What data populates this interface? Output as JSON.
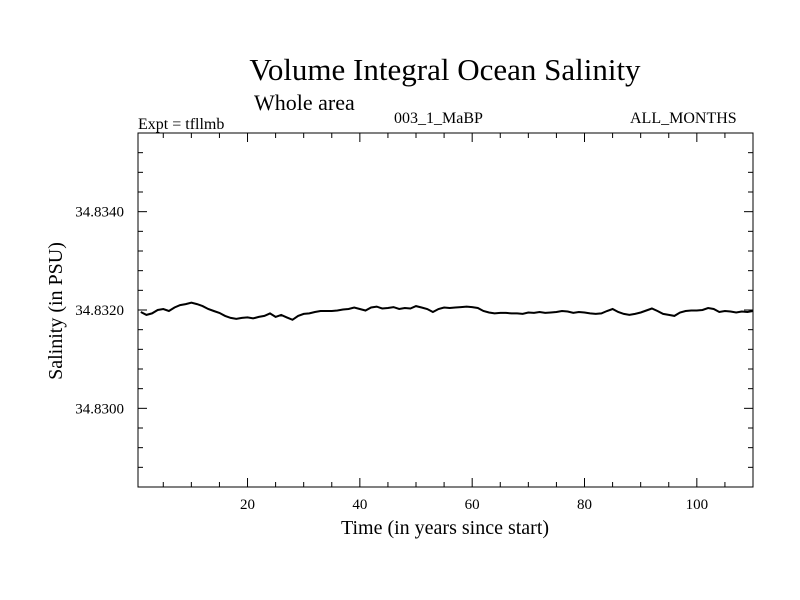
{
  "chart_data": {
    "type": "line",
    "title": "Volume Integral Ocean Salinity",
    "subtitle": "Whole area",
    "annotations": {
      "experiment": "Expt = tfllmb",
      "run": "003_1_MaBP",
      "months": "ALL_MONTHS"
    },
    "xlabel": "Time (in years since start)",
    "ylabel": "Salinity (in PSU)",
    "xlim": [
      0.5,
      110
    ],
    "ylim": [
      34.8284,
      34.8356
    ],
    "x_ticks": [
      20,
      40,
      60,
      80,
      100
    ],
    "y_ticks": [
      34.83,
      34.832,
      34.834
    ],
    "y_tick_labels": [
      "34.8300",
      "34.8320",
      "34.8340"
    ],
    "grid": false,
    "series": [
      {
        "name": "Salinity",
        "color": "#000000",
        "x": [
          1,
          2,
          3,
          4,
          5,
          6,
          7,
          8,
          9,
          10,
          11,
          12,
          13,
          14,
          15,
          16,
          17,
          18,
          19,
          20,
          21,
          22,
          23,
          24,
          25,
          26,
          27,
          28,
          29,
          30,
          31,
          32,
          33,
          34,
          35,
          36,
          37,
          38,
          39,
          40,
          41,
          42,
          43,
          44,
          45,
          46,
          47,
          48,
          49,
          50,
          51,
          52,
          53,
          54,
          55,
          56,
          57,
          58,
          59,
          60,
          61,
          62,
          63,
          64,
          65,
          66,
          67,
          68,
          69,
          70,
          71,
          72,
          73,
          74,
          75,
          76,
          77,
          78,
          79,
          80,
          81,
          82,
          83,
          84,
          85,
          86,
          87,
          88,
          89,
          90,
          91,
          92,
          93,
          94,
          95,
          96,
          97,
          98,
          99,
          100,
          101,
          102,
          103,
          104,
          105,
          106,
          107,
          108,
          109,
          110
        ],
        "values": [
          34.83196,
          34.8319,
          34.83193,
          34.832,
          34.83202,
          34.83198,
          34.83205,
          34.8321,
          34.83212,
          34.83215,
          34.83212,
          34.83208,
          34.83202,
          34.83198,
          34.83194,
          34.83188,
          34.83184,
          34.83182,
          34.83184,
          34.83185,
          34.83183,
          34.83186,
          34.83188,
          34.83193,
          34.83186,
          34.8319,
          34.83185,
          34.8318,
          34.83188,
          34.83192,
          34.83193,
          34.83196,
          34.83198,
          34.83198,
          34.83198,
          34.83199,
          34.83201,
          34.83202,
          34.83205,
          34.83202,
          34.83199,
          34.83205,
          34.83207,
          34.83203,
          34.83204,
          34.83206,
          34.83202,
          34.83204,
          34.83203,
          34.83208,
          34.83205,
          34.83202,
          34.83196,
          34.83202,
          34.83205,
          34.83204,
          34.83205,
          34.83206,
          34.83207,
          34.83206,
          34.83204,
          34.83198,
          34.83195,
          34.83193,
          34.83194,
          34.83194,
          34.83193,
          34.83193,
          34.83192,
          34.83195,
          34.83194,
          34.83196,
          34.83194,
          34.83195,
          34.83196,
          34.83198,
          34.83197,
          34.83194,
          34.83196,
          34.83195,
          34.83193,
          34.83192,
          34.83193,
          34.83198,
          34.83202,
          34.83196,
          34.83192,
          34.8319,
          34.83192,
          34.83195,
          34.83199,
          34.83203,
          34.83198,
          34.83192,
          34.8319,
          34.83188,
          34.83195,
          34.83198,
          34.83199,
          34.83199,
          34.832,
          34.83204,
          34.83202,
          34.83196,
          34.83198,
          34.83197,
          34.83195,
          34.83197,
          34.83196,
          34.83198
        ]
      }
    ]
  }
}
